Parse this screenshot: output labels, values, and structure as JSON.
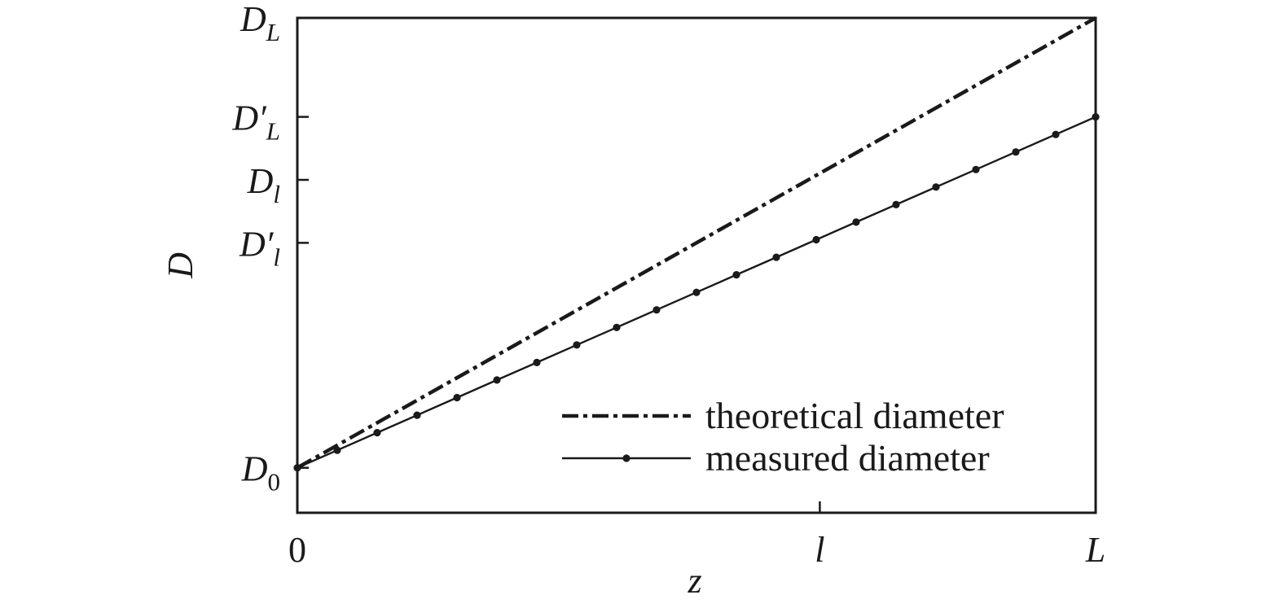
{
  "chart_data": {
    "type": "line",
    "xlabel": "z",
    "ylabel": "D",
    "xlim": [
      0,
      1
    ],
    "ylim": [
      -0.1,
      1
    ],
    "x_ticks": [
      {
        "value": 0,
        "label": "0",
        "italic": false
      },
      {
        "value": 0.6545,
        "label": "l",
        "italic": true
      },
      {
        "value": 1,
        "label": "L",
        "italic": true
      }
    ],
    "y_ticks": [
      {
        "value": 0,
        "label": "D",
        "sub": "0",
        "prime": false
      },
      {
        "value": 0.5,
        "label": "D",
        "sub": "l",
        "prime": true
      },
      {
        "value": 0.64,
        "label": "D",
        "sub": "l",
        "prime": false
      },
      {
        "value": 0.78,
        "label": "D",
        "sub": "L",
        "prime": true
      },
      {
        "value": 1,
        "label": "D",
        "sub": "L",
        "prime": false
      }
    ],
    "series": [
      {
        "name": "theoretical diameter",
        "style": "dash-dot",
        "x": [
          0,
          1
        ],
        "y": [
          0,
          1
        ]
      },
      {
        "name": "measured diameter",
        "style": "solid-markers",
        "x": [
          0,
          0.05,
          0.1,
          0.15,
          0.2,
          0.25,
          0.3,
          0.35,
          0.4,
          0.45,
          0.5,
          0.55,
          0.6,
          0.65,
          0.7,
          0.75,
          0.8,
          0.85,
          0.9,
          0.95,
          1
        ],
        "y": [
          0,
          0.039,
          0.078,
          0.117,
          0.156,
          0.195,
          0.234,
          0.273,
          0.312,
          0.351,
          0.39,
          0.429,
          0.468,
          0.507,
          0.546,
          0.585,
          0.624,
          0.663,
          0.702,
          0.741,
          0.78
        ]
      }
    ],
    "legend": {
      "position": "bottom-right"
    },
    "grid": false,
    "colors": {
      "ink": "#1a1a1a"
    }
  }
}
